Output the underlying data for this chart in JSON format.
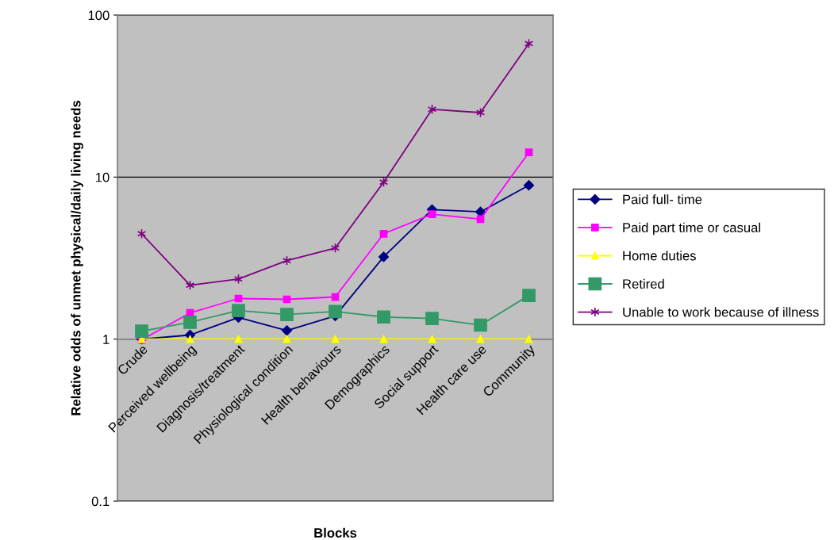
{
  "chart_data": {
    "type": "line",
    "xlabel": "Blocks",
    "ylabel": "Relative odds of unmet physical/daily living needs",
    "categories": [
      "Crude",
      "Perceived wellbeing",
      "Diagnosis/treatment",
      "Physiological condition",
      "Health behaviours",
      "Demographics",
      "Social support",
      "Health care use",
      "Community"
    ],
    "series": [
      {
        "name": "Paid full- time",
        "color": "#000080",
        "marker": "diamond",
        "values": [
          1.0,
          1.06,
          1.36,
          1.13,
          1.39,
          3.22,
          6.3,
          6.1,
          8.9
        ]
      },
      {
        "name": "Paid part time or casual",
        "color": "#ff00ff",
        "marker": "square",
        "values": [
          0.99,
          1.45,
          1.78,
          1.76,
          1.82,
          4.47,
          5.9,
          5.5,
          14.2
        ]
      },
      {
        "name": "Home duties",
        "color": "#ffff00",
        "marker": "triangle",
        "values": [
          1,
          1,
          1,
          1,
          1,
          1,
          1,
          1,
          1
        ]
      },
      {
        "name": "Retired",
        "color": "#339966",
        "marker": "square",
        "values": [
          1.12,
          1.27,
          1.5,
          1.42,
          1.48,
          1.37,
          1.34,
          1.22,
          1.86
        ]
      },
      {
        "name": "Unable to work because of illness",
        "color": "#800080",
        "marker": "cross",
        "values": [
          4.47,
          2.15,
          2.35,
          3.05,
          3.65,
          9.3,
          26.2,
          25.0,
          66.7
        ]
      }
    ],
    "log": "y",
    "ylim": [
      0.1,
      100
    ],
    "yticks": [
      0.1,
      1,
      10,
      100
    ],
    "grid": "y",
    "legend": "right",
    "line_style": "solid"
  }
}
